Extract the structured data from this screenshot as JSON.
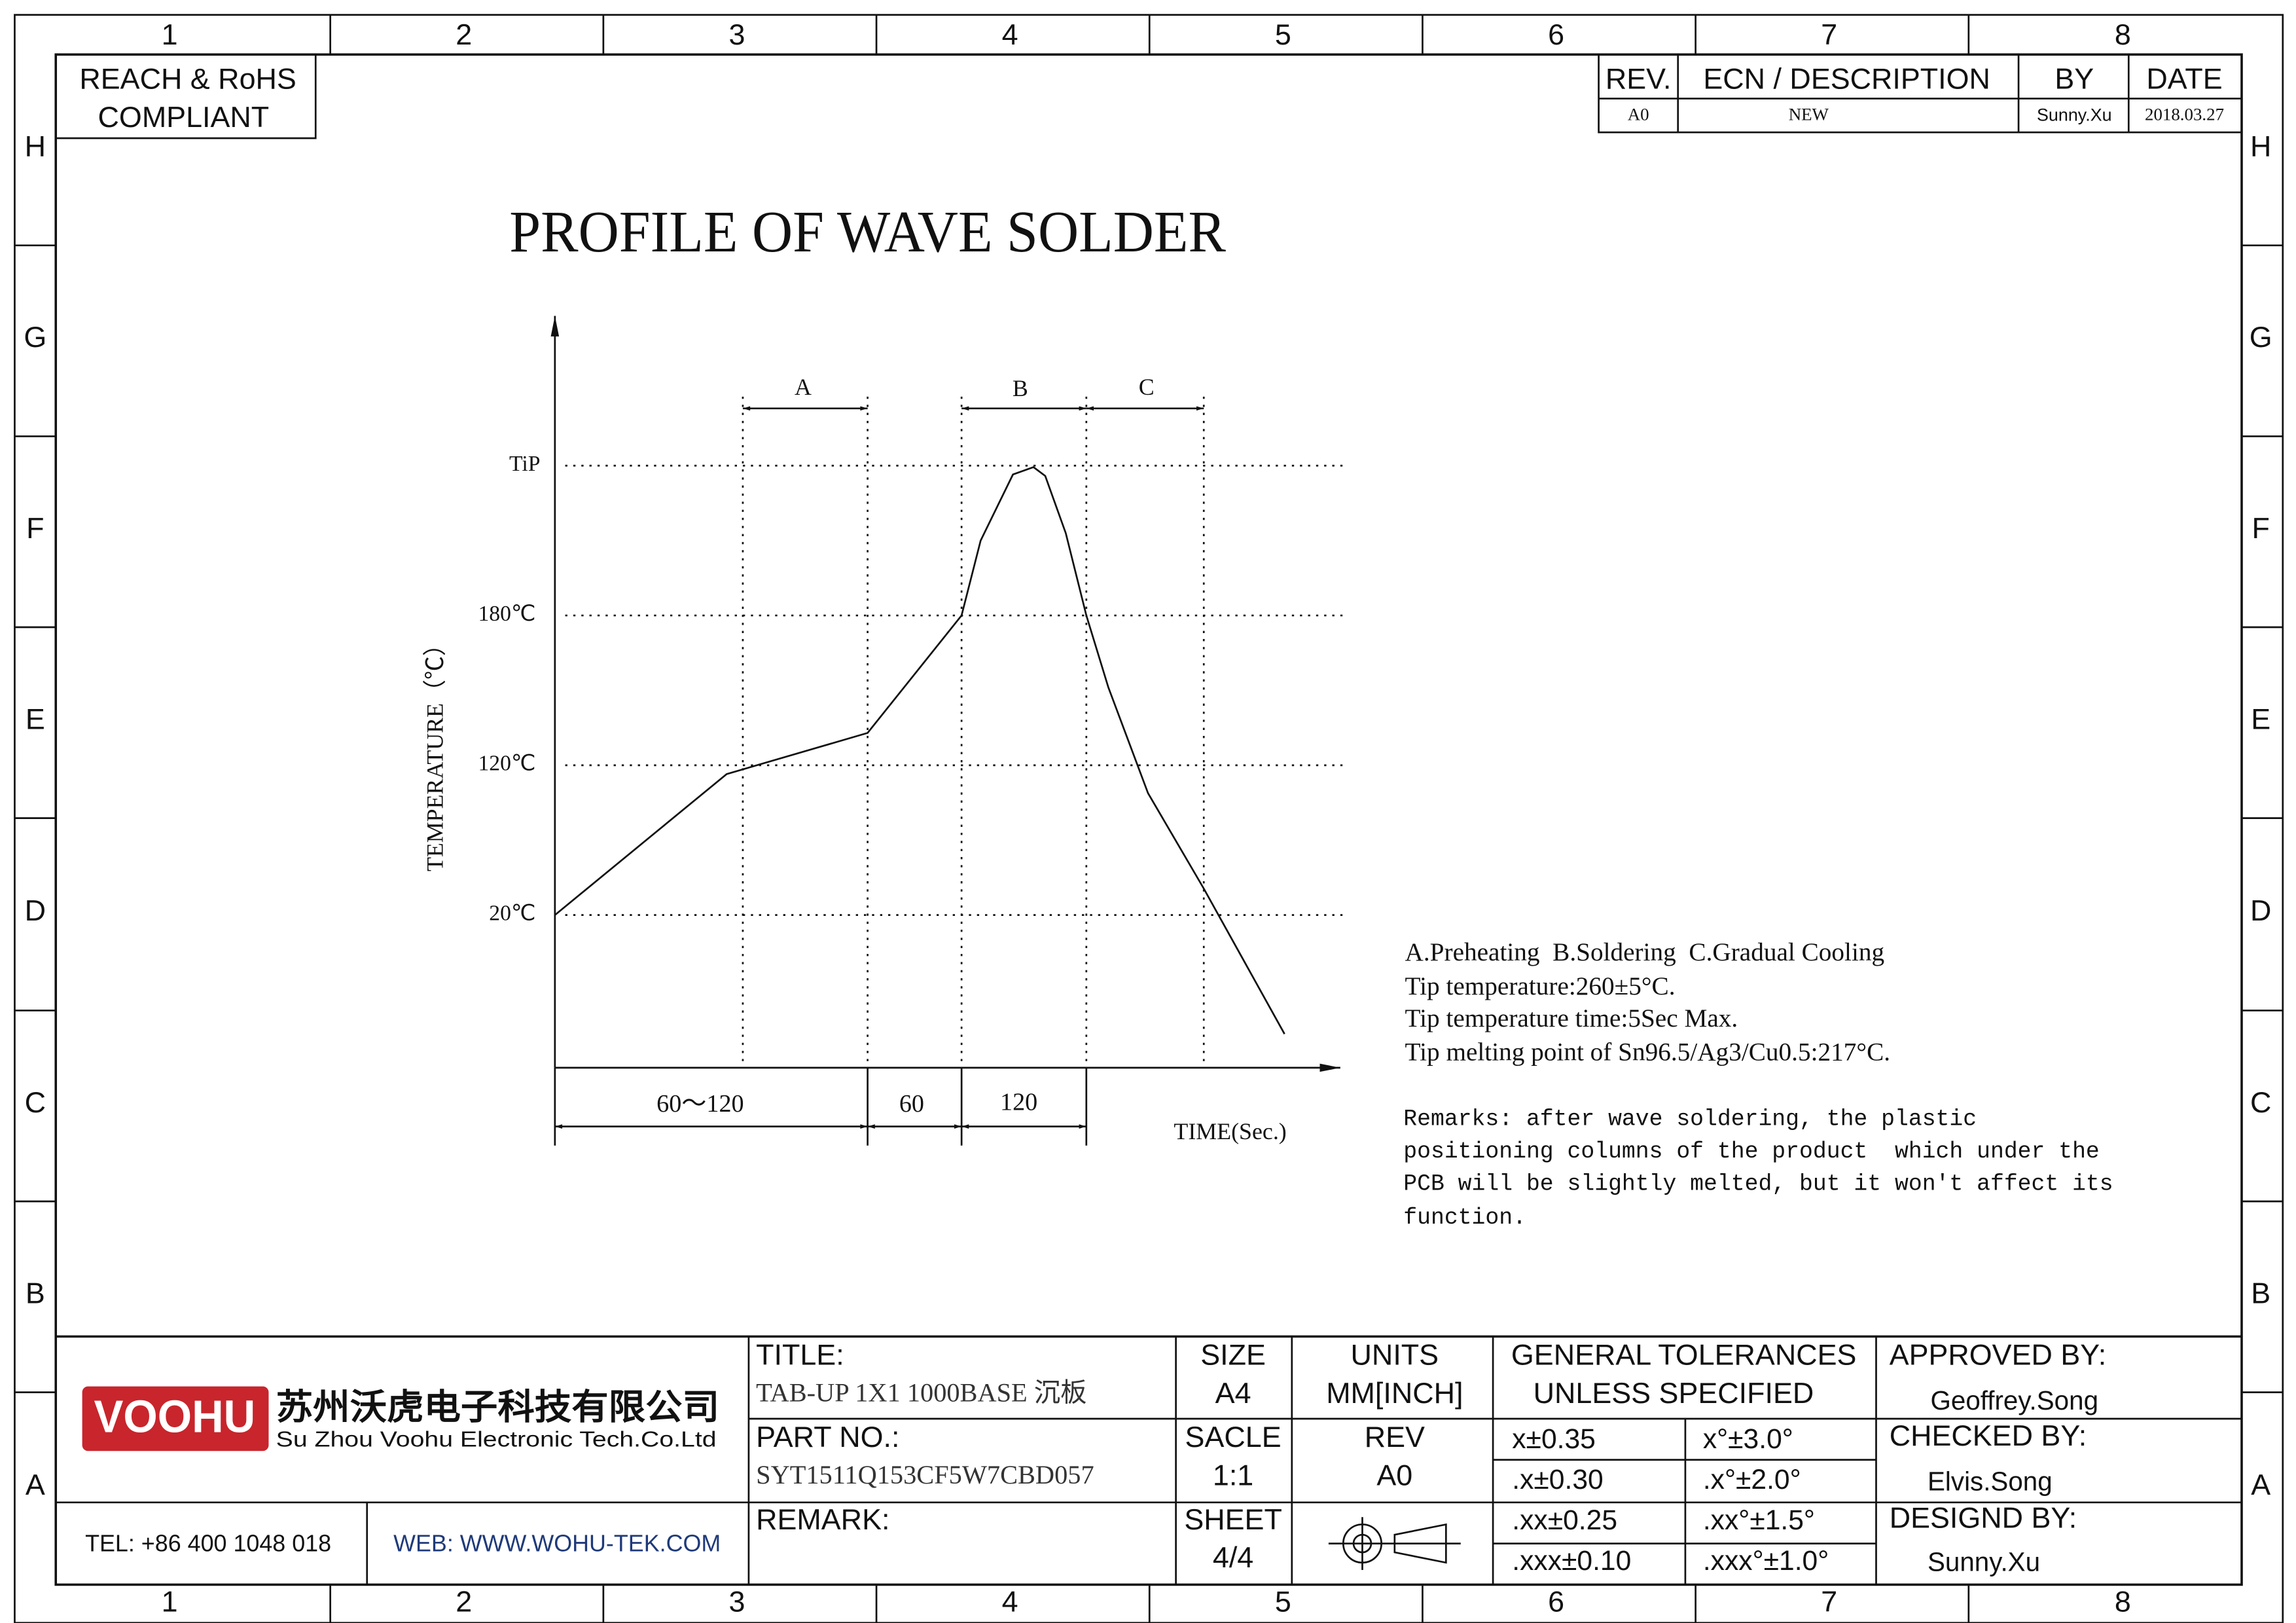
{
  "grid": {
    "columns": [
      "1",
      "2",
      "3",
      "4",
      "5",
      "6",
      "7",
      "8"
    ],
    "rows": [
      "H",
      "G",
      "F",
      "E",
      "D",
      "C",
      "B",
      "A"
    ]
  },
  "compliance": [
    "REACH & RoHS",
    "COMPLIANT"
  ],
  "revision_table": {
    "headers": [
      "REV.",
      "ECN / DESCRIPTION",
      "BY",
      "DATE"
    ],
    "row": [
      "A0",
      "NEW",
      "Sunny.Xu",
      "2018.03.27"
    ]
  },
  "profile": {
    "title": "PROFILE OF WAVE SOLDER",
    "y_axis_label": "TEMPERATURE（℃）",
    "x_axis_label": "TIME(Sec.)",
    "levels": [
      "TiP",
      "180℃",
      "120℃",
      "20℃"
    ],
    "zones": [
      "A",
      "B",
      "C"
    ],
    "durations": [
      "60～120",
      "60",
      "120"
    ]
  },
  "notes": [
    "A.Preheating  B.Soldering  C.Gradual Cooling",
    "Tip temperature:260±5°C.",
    "Tip temperature time:5Sec Max.",
    "Tip melting point of Sn96.5/Ag3/Cu0.5:217°C."
  ],
  "remarks": [
    "Remarks: after wave soldering, the plastic",
    "positioning columns of the product  which under the",
    "PCB will be slightly melted, but it won't affect its",
    "function."
  ],
  "title_block": {
    "logo": "VOOHU",
    "company_cn": "苏州沃虎电子科技有限公司",
    "company_en": "Su Zhou Voohu Electronic Tech.Co.Ltd",
    "tel": "TEL: +86 400 1048 018",
    "web": "WEB: WWW.WOHU-TEK.COM",
    "title_label": "TITLE:",
    "title": "TAB-UP 1X1 1000BASE 沉板",
    "size_label": "SIZE",
    "size": "A4",
    "units_label": "UNITS",
    "units": "MM[INCH]",
    "part_label": "PART NO.:",
    "part": "SYT1511Q153CF5W7CBD057",
    "scale_label": "SACLE",
    "scale": "1:1",
    "rev_label": "REV",
    "rev": "A0",
    "remark_label": "REMARK:",
    "sheet_label": "SHEET",
    "sheet": "4/4",
    "tolerances_title": [
      "GENERAL TOLERANCES",
      "UNLESS SPECIFIED"
    ],
    "tolerances": [
      [
        "x±0.35",
        "x°±3.0°"
      ],
      [
        ".x±0.30",
        ".x°±2.0°"
      ],
      [
        ".xx±0.25",
        ".xx°±1.5°"
      ],
      [
        ".xxx±0.10",
        ".xxx°±1.0°"
      ]
    ],
    "approved_label": "APPROVED BY:",
    "approved": "Geoffrey.Song",
    "checked_label": "CHECKED BY:",
    "checked": "Elvis.Song",
    "designed_label": "DESIGND BY:",
    "designed": "Sunny.Xu"
  }
}
